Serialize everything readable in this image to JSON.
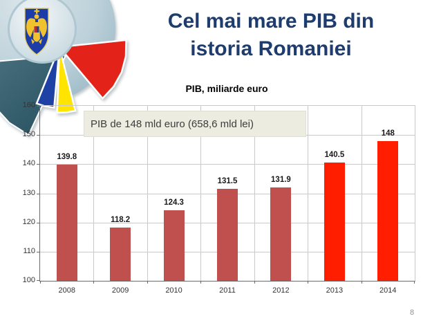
{
  "slide": {
    "title_line1": "Cel mai mare PIB din",
    "title_line2": "istoria Romaniei",
    "page_number": "8"
  },
  "callout": {
    "text": "PIB de 148 mld euro (658,6 mld lei)"
  },
  "icons": {
    "logo": "romania-coat-of-arms-flag-fan"
  },
  "colors": {
    "title": "#1F3C6E",
    "chart_title": "#000000",
    "callout_bg": "#ECECE1",
    "gridline": "#C9C9C9",
    "axis": "#6A6A6A",
    "bar_muted": "#C0504D",
    "bar_highlight": "#FF1E00",
    "flag_blue": "#1D41A5",
    "flag_yellow": "#FFE400",
    "flag_red": "#E32219",
    "teal_wedge": "#2F5D6D"
  },
  "chart_data": {
    "type": "bar",
    "title": "PIB, miliarde euro",
    "categories": [
      "2008",
      "2009",
      "2010",
      "2011",
      "2012",
      "2013",
      "2014"
    ],
    "values": [
      139.8,
      118.2,
      124.3,
      131.5,
      131.9,
      140.5,
      148
    ],
    "value_labels": [
      "139.8",
      "118.2",
      "124.3",
      "131.5",
      "131.9",
      "140.5",
      "148"
    ],
    "bar_colors": [
      "#C0504D",
      "#C0504D",
      "#C0504D",
      "#C0504D",
      "#C0504D",
      "#FF1E00",
      "#FF1E00"
    ],
    "ylim": [
      100,
      160
    ],
    "yticks": [
      100,
      110,
      120,
      130,
      140,
      150,
      160
    ],
    "grid": true,
    "legend": "none",
    "xlabel": "",
    "ylabel": "",
    "annotation": "PIB de 148 mld euro (658,6 mld lei)"
  }
}
